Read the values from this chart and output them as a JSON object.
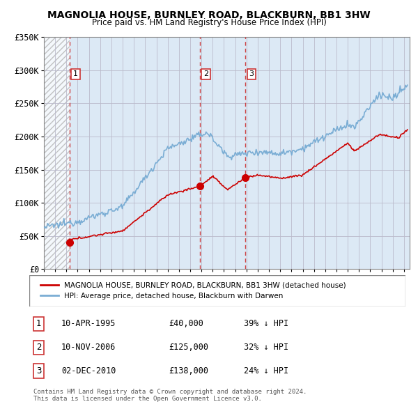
{
  "title": "MAGNOLIA HOUSE, BURNLEY ROAD, BLACKBURN, BB1 3HW",
  "subtitle": "Price paid vs. HM Land Registry's House Price Index (HPI)",
  "sale_dates": [
    "1995-04-10",
    "2006-11-10",
    "2010-12-02"
  ],
  "sale_prices": [
    40000,
    125000,
    138000
  ],
  "sale_years": [
    1995.29,
    2006.87,
    2010.92
  ],
  "sale_labels": [
    "1",
    "2",
    "3"
  ],
  "sale_info": [
    [
      "1",
      "10-APR-1995",
      "£40,000",
      "39% ↓ HPI"
    ],
    [
      "2",
      "10-NOV-2006",
      "£125,000",
      "32% ↓ HPI"
    ],
    [
      "3",
      "02-DEC-2010",
      "£138,000",
      "24% ↓ HPI"
    ]
  ],
  "legend_house": "MAGNOLIA HOUSE, BURNLEY ROAD, BLACKBURN, BB1 3HW (detached house)",
  "legend_hpi": "HPI: Average price, detached house, Blackburn with Darwen",
  "footer": [
    "Contains HM Land Registry data © Crown copyright and database right 2024.",
    "This data is licensed under the Open Government Licence v3.0."
  ],
  "house_color": "#cc0000",
  "hpi_color": "#7aadd4",
  "vline_color": "#cc3333",
  "ylim": [
    0,
    350000
  ],
  "yticks": [
    0,
    50000,
    100000,
    150000,
    200000,
    250000,
    300000,
    350000
  ],
  "ytick_labels": [
    "£0",
    "£50K",
    "£100K",
    "£150K",
    "£200K",
    "£250K",
    "£300K",
    "£350K"
  ],
  "xlim_start": 1993.0,
  "xlim_end": 2025.5,
  "chart_bg": "#dce9f5",
  "hatch_end_year": 1995.29
}
